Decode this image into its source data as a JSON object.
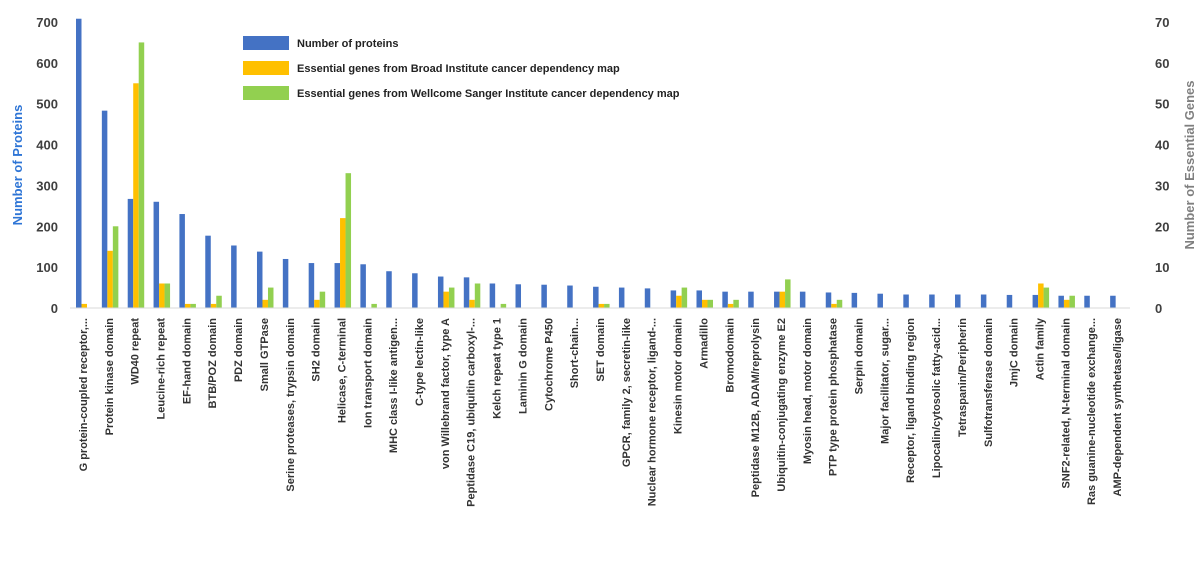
{
  "chart_data": {
    "type": "bar",
    "title": "",
    "ylabel": "Number of Proteins",
    "y2label": "Number of Essential Genes",
    "ylim": [
      0,
      700
    ],
    "y2lim": [
      0,
      70
    ],
    "yticks": [
      "0",
      "100",
      "200",
      "300",
      "400",
      "500",
      "600",
      "700"
    ],
    "y2ticks": [
      "0",
      "10",
      "20",
      "30",
      "40",
      "50",
      "60",
      "70"
    ],
    "grid": false,
    "legend_position": "top",
    "categories": [
      "G protein-coupled receptor,...",
      "Protein kinase domain",
      "WD40 repeat",
      "Leucine-rich repeat",
      "EF-hand domain",
      "BTB/POZ domain",
      "PDZ domain",
      "Small GTPase",
      "Serine proteases, trypsin domain",
      "SH2 domain",
      "Helicase, C-terminal",
      "Ion transport domain",
      "MHC class I-like antigen...",
      "C-type lectin-like",
      "von Willebrand factor, type A",
      "Peptidase C19, ubiquitin carboxyl-...",
      "Kelch repeat type 1",
      "Laminin G domain",
      "Cytochrome P450",
      "Short-chain...",
      "SET domain",
      "GPCR, family 2, secretin-like",
      "Nuclear hormone receptor, ligand-...",
      "Kinesin motor domain",
      "Armadillo",
      "Bromodomain",
      "Peptidase M12B, ADAM/reprolysin",
      "Ubiquitin-conjugating enzyme E2",
      "Myosin head, motor domain",
      "PTP type protein phosphatase",
      "Serpin domain",
      "Major facilitator, sugar...",
      "Receptor, ligand binding region",
      "Lipocalin/cytosolic fatty-acid...",
      "Tetraspanin/Peripherin",
      "Sulfotransferase domain",
      "JmjC domain",
      "Actin family",
      "SNF2-related, N-terminal domain",
      "Ras guanine-nucleotide exchange...",
      "AMP-dependent synthetase/ligase"
    ],
    "series": [
      {
        "name": "Number of proteins",
        "axis": "left",
        "color": "#4472C4",
        "values": [
          708,
          483,
          267,
          260,
          230,
          177,
          153,
          138,
          120,
          110,
          110,
          107,
          90,
          85,
          77,
          75,
          60,
          58,
          57,
          55,
          52,
          50,
          48,
          43,
          43,
          40,
          40,
          40,
          40,
          38,
          37,
          35,
          33,
          33,
          33,
          33,
          32,
          32,
          30,
          30,
          30
        ]
      },
      {
        "name": "Essential genes from Broad Institute cancer dependency map",
        "axis": "right",
        "color": "#FFC000",
        "values": [
          1,
          14,
          55,
          6,
          1,
          1,
          0,
          2,
          0,
          2,
          22,
          0,
          0,
          0,
          4,
          2,
          0,
          0,
          0,
          0,
          1,
          0,
          0,
          3,
          2,
          1,
          0,
          4,
          0,
          1,
          0,
          0,
          0,
          0,
          0,
          0,
          0,
          6,
          2,
          0,
          0
        ]
      },
      {
        "name": "Essential genes from Wellcome Sanger Institute cancer dependency map",
        "axis": "right",
        "color": "#92D050",
        "values": [
          0,
          20,
          65,
          6,
          1,
          3,
          0,
          5,
          0,
          4,
          33,
          1,
          0,
          0,
          5,
          6,
          1,
          0,
          0,
          0,
          1,
          0,
          0,
          5,
          2,
          2,
          0,
          7,
          0,
          2,
          0,
          0,
          0,
          0,
          0,
          0,
          0,
          5,
          3,
          0,
          0
        ]
      }
    ]
  }
}
